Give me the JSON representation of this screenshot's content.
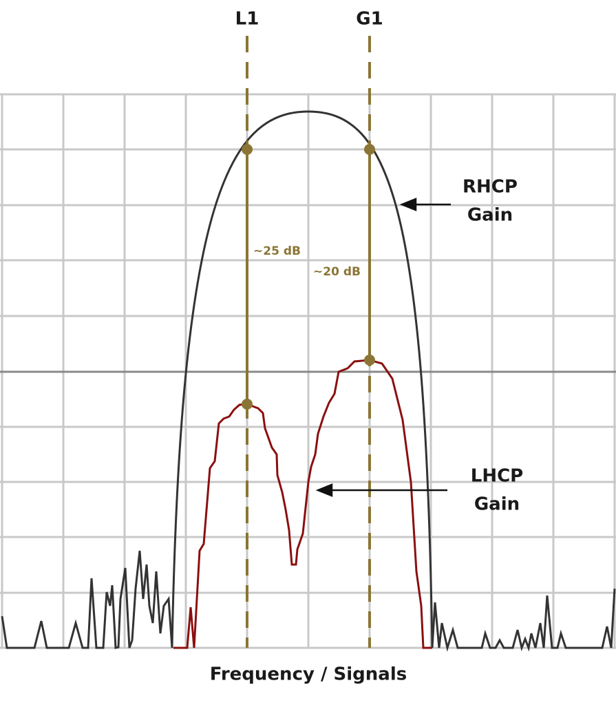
{
  "markers": [
    "L1",
    "G1"
  ],
  "differences": [
    "~25 dB",
    "~20 dB"
  ],
  "curves": {
    "rhcp": [
      "RHCP",
      "Gain"
    ],
    "lhcp": [
      "LHCP",
      "Gain"
    ]
  },
  "x_axis_label": "Frequency / Signals"
}
